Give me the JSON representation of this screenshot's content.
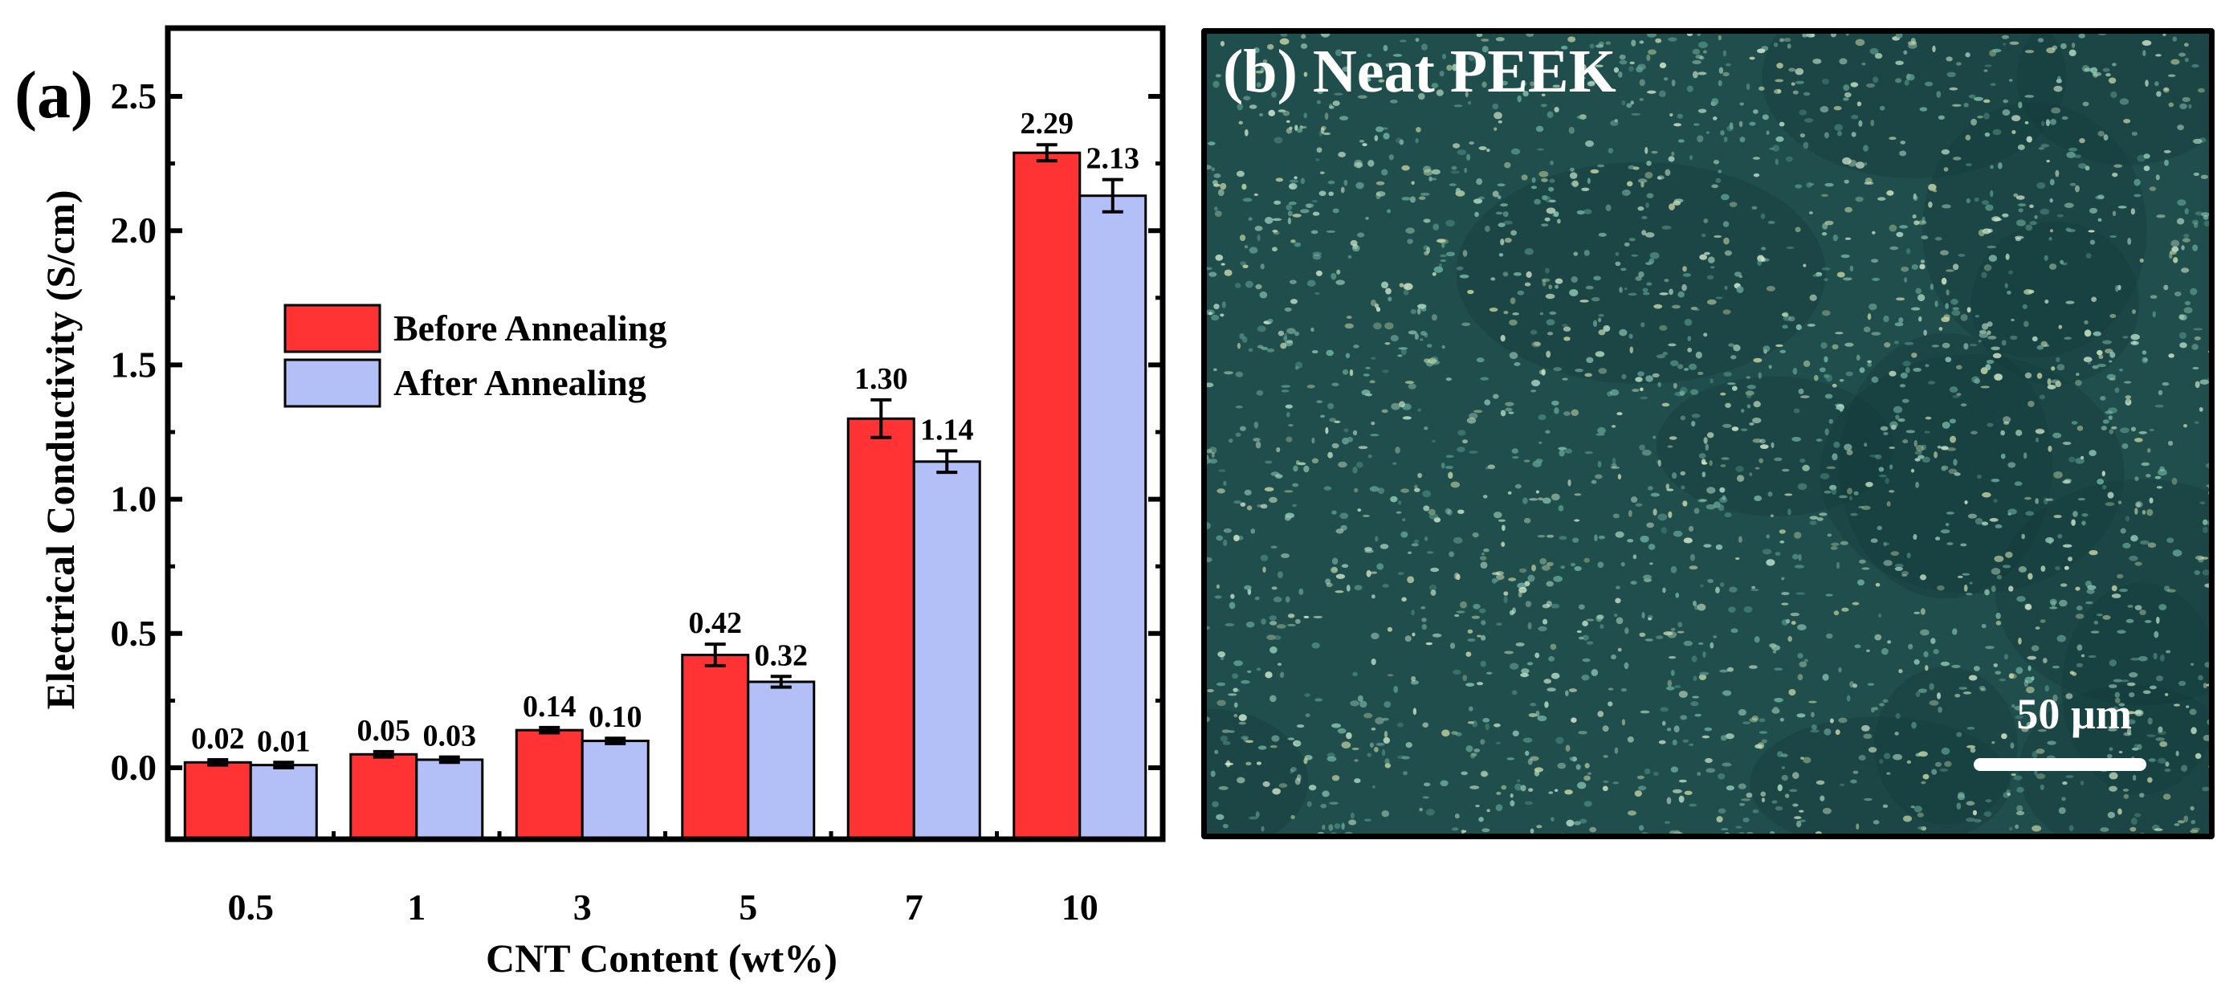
{
  "panel_a": {
    "label": "(a)",
    "legend": [
      "Before Annealing",
      "After Annealing"
    ]
  },
  "panel_b": {
    "title": "(b) Neat PEEK",
    "scale_bar_label": "50 µm",
    "image_description": "Optical micrograph, dark teal background with bright speckles"
  },
  "colors": {
    "before": "#ff3333",
    "after": "#b3bff7",
    "frame": "#000000",
    "micro_bg": "#1f4e4c"
  },
  "chart_data": {
    "type": "bar",
    "title": "",
    "xlabel": "CNT Content (wt%)",
    "ylabel": "Electrical Conductivity (S/cm)",
    "categories": [
      "0.5",
      "1",
      "3",
      "5",
      "7",
      "10"
    ],
    "series": [
      {
        "name": "Before Annealing",
        "values": [
          0.02,
          0.05,
          0.14,
          0.42,
          1.3,
          2.29
        ],
        "errors": [
          0.01,
          0.01,
          0.01,
          0.04,
          0.07,
          0.03
        ],
        "labels": [
          "0.02",
          "0.05",
          "0.14",
          "0.42",
          "1.30",
          "2.29"
        ]
      },
      {
        "name": "After Annealing",
        "values": [
          0.01,
          0.03,
          0.1,
          0.32,
          1.14,
          2.13
        ],
        "errors": [
          0.01,
          0.01,
          0.01,
          0.02,
          0.04,
          0.06
        ],
        "labels": [
          "0.01",
          "0.03",
          "0.10",
          "0.32",
          "1.14",
          "2.13"
        ]
      }
    ],
    "yticks": [
      "0.0",
      "0.5",
      "1.0",
      "1.5",
      "2.0",
      "2.5"
    ],
    "ylim": [
      -0.27,
      2.75
    ],
    "grid": false,
    "legend_position": "upper-left-center"
  }
}
